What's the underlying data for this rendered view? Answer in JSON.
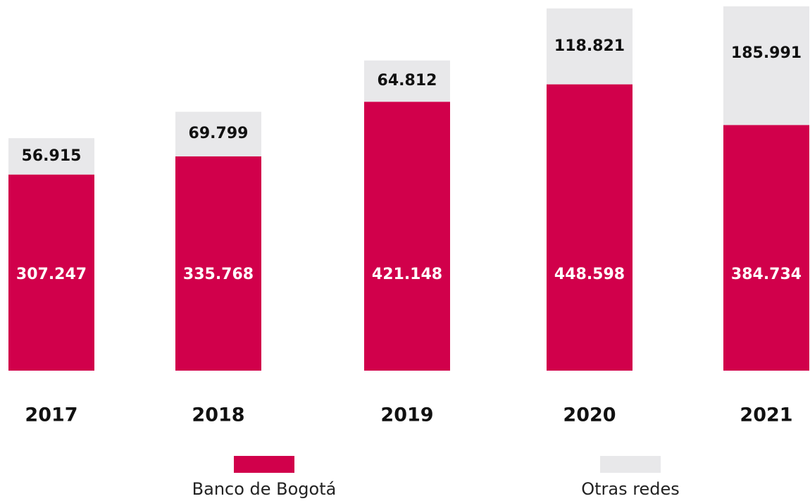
{
  "chart_data": {
    "type": "stacked_bar",
    "categories": [
      "2017",
      "2018",
      "2019",
      "2020",
      "2021"
    ],
    "series": [
      {
        "name": "Banco de Bogotá",
        "color": "#d1004b",
        "values": [
          307247,
          335768,
          421148,
          448598,
          384734
        ],
        "value_labels": [
          "307.247",
          "335.768",
          "421.148",
          "448.598",
          "384.734"
        ]
      },
      {
        "name": "Otras redes",
        "color": "#e8e8ea",
        "values": [
          56915,
          69799,
          64812,
          118821,
          185991
        ],
        "value_labels": [
          "56.915",
          "69.799",
          "64.812",
          "118.821",
          "185.991"
        ]
      }
    ]
  }
}
